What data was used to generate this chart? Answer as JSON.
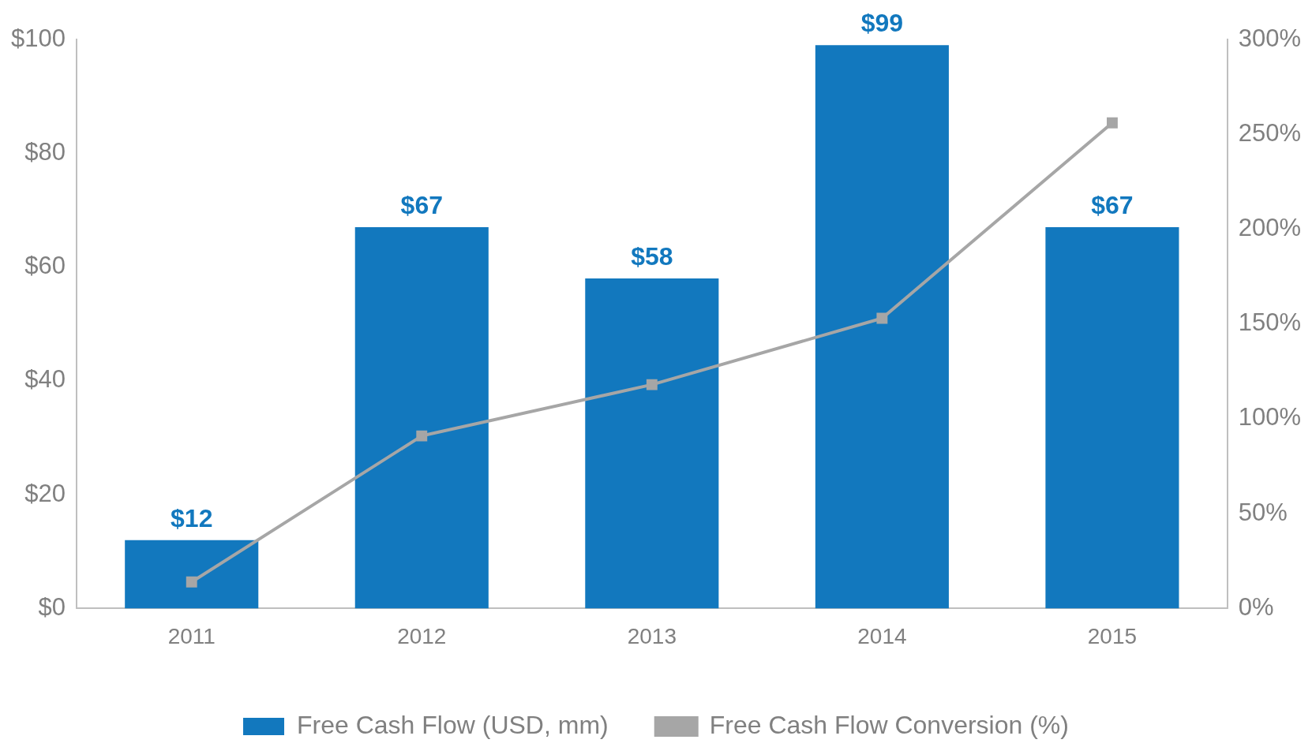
{
  "chart_data": {
    "type": "bar",
    "categories": [
      "2011",
      "2012",
      "2013",
      "2014",
      "2015"
    ],
    "series": [
      {
        "name": "Free Cash Flow (USD, mm)",
        "color": "#1278be",
        "values": [
          12,
          67,
          58,
          99,
          67
        ],
        "value_labels": [
          "$12",
          "$67",
          "$58",
          "$99",
          "$67"
        ]
      },
      {
        "name": "Free Cash Flow Conversion (%)",
        "type": "line",
        "axis": "y2",
        "color": "#a6a6a6",
        "marker": "square",
        "values": [
          14,
          91,
          118,
          153,
          256
        ]
      }
    ],
    "ylim": [
      0,
      100
    ],
    "yticks": [
      {
        "value": 0,
        "label": "$0"
      },
      {
        "value": 20,
        "label": "$20"
      },
      {
        "value": 40,
        "label": "$40"
      },
      {
        "value": 60,
        "label": "$60"
      },
      {
        "value": 80,
        "label": "$80"
      },
      {
        "value": 100,
        "label": "$100"
      }
    ],
    "y2lim": [
      0,
      300
    ],
    "y2ticks": [
      {
        "value": 0,
        "label": "0%"
      },
      {
        "value": 50,
        "label": "50%"
      },
      {
        "value": 100,
        "label": "100%"
      },
      {
        "value": 150,
        "label": "150%"
      },
      {
        "value": 200,
        "label": "200%"
      },
      {
        "value": 250,
        "label": "250%"
      },
      {
        "value": 300,
        "label": "300%"
      }
    ],
    "grid": false,
    "legend": "bottom"
  }
}
